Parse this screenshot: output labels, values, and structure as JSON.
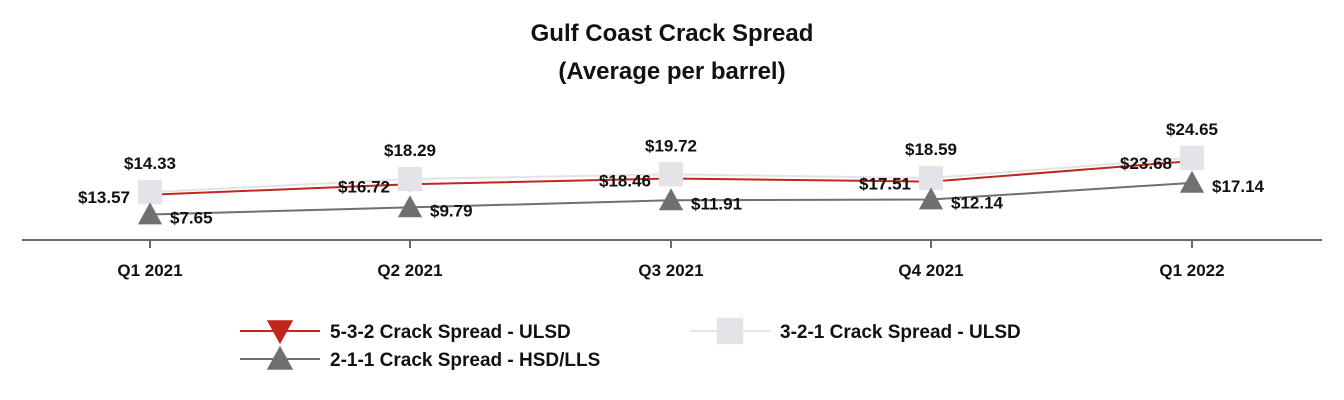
{
  "chart_data": {
    "type": "line",
    "title": "Gulf Coast Crack Spread",
    "subtitle": "(Average per barrel)",
    "categories": [
      "Q1 2021",
      "Q2 2021",
      "Q3 2021",
      "Q4 2021",
      "Q1 2022"
    ],
    "xlabel": "",
    "ylabel": "",
    "ylim": [
      0,
      27
    ],
    "grid": false,
    "series": [
      {
        "name": "5-3-2 Crack Spread - ULSD",
        "values": [
          13.57,
          16.72,
          18.46,
          17.51,
          23.68
        ],
        "labels": [
          "$13.57",
          "$16.72",
          "$18.46",
          "$17.51",
          "$23.68"
        ],
        "color": "#c0281e",
        "marker": "triangle-down"
      },
      {
        "name": "3-2-1 Crack Spread - ULSD",
        "values": [
          14.33,
          18.29,
          19.72,
          18.59,
          24.65
        ],
        "labels": [
          "$14.33",
          "$18.29",
          "$19.72",
          "$18.59",
          "$24.65"
        ],
        "color": "#e3e3e8",
        "marker": "square"
      },
      {
        "name": "2-1-1 Crack Spread - HSD/LLS",
        "values": [
          7.65,
          9.79,
          11.91,
          12.14,
          17.14
        ],
        "labels": [
          "$7.65",
          "$9.79",
          "$11.91",
          "$12.14",
          "$17.14"
        ],
        "color": "#707070",
        "marker": "triangle-up"
      }
    ],
    "legend": {
      "placement": "bottom"
    }
  }
}
